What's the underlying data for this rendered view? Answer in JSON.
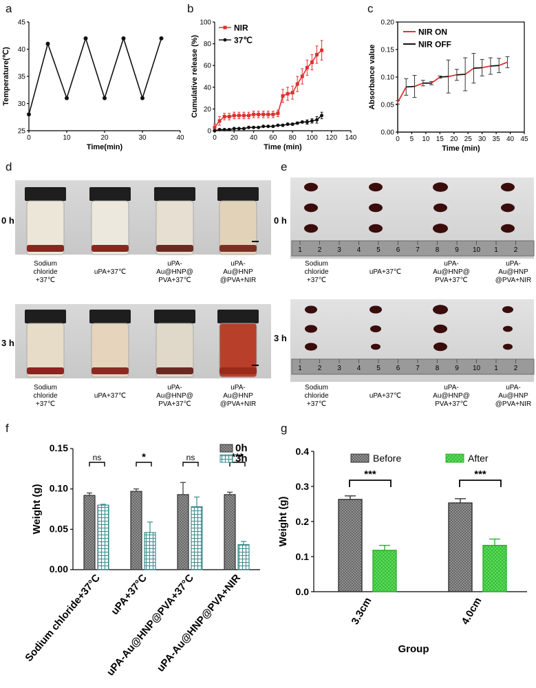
{
  "panel_labels": {
    "a": "a",
    "b": "b",
    "c": "c",
    "d": "d",
    "e": "e",
    "f": "f",
    "g": "g"
  },
  "colors": {
    "nir_red": "#e03030",
    "black": "#111111",
    "green": "#5fe05f",
    "teal": "#3a8c8c",
    "gray": "#8a8a8a"
  },
  "photo_d": {
    "rows": [
      "0 h",
      "3 h"
    ],
    "captions": [
      [
        "Sodium",
        "chloride",
        "+37℃"
      ],
      [
        "uPA+37℃"
      ],
      [
        "uPA-",
        "Au@HNP@",
        "PVA+37℃"
      ],
      [
        "uPA-",
        "Au@HNP",
        "@PVA+NIR"
      ]
    ]
  },
  "photo_e": {
    "rows": [
      "0 h",
      "3 h"
    ],
    "ruler_numbers": [
      "1",
      "2",
      "3",
      "4",
      "5",
      "6",
      "7",
      "8",
      "9",
      "10",
      "1",
      "2"
    ]
  },
  "chart_data": [
    {
      "id": "a",
      "type": "line",
      "title": "",
      "xlabel": "Time(min)",
      "ylabel": "Temperature(℃)",
      "xlim": [
        0,
        40
      ],
      "ylim": [
        25,
        45
      ],
      "xticks": [
        0,
        10,
        20,
        30,
        40
      ],
      "yticks": [
        25,
        30,
        35,
        40,
        45
      ],
      "x": [
        0,
        5,
        10,
        15,
        20,
        25,
        30,
        35
      ],
      "y": [
        28,
        41,
        31,
        42,
        31,
        42,
        31,
        42
      ]
    },
    {
      "id": "b",
      "type": "line",
      "xlabel": "Time (min)",
      "ylabel": "Cumulative release (%)",
      "xlim": [
        0,
        140
      ],
      "ylim": [
        0,
        100
      ],
      "xticks": [
        0,
        20,
        40,
        60,
        80,
        100,
        120,
        140
      ],
      "yticks": [
        0,
        20,
        40,
        60,
        80,
        100
      ],
      "legend_position": "top-left",
      "series": [
        {
          "name": "NIR",
          "color": "#e03030",
          "x": [
            0,
            5,
            10,
            15,
            20,
            25,
            30,
            35,
            40,
            45,
            50,
            55,
            60,
            65,
            70,
            75,
            80,
            85,
            90,
            95,
            100,
            105,
            110
          ],
          "y": [
            3,
            9,
            13,
            13,
            14,
            14,
            14,
            14,
            15,
            15,
            15,
            15,
            15,
            16,
            32,
            34,
            35,
            43,
            50,
            58,
            63,
            70,
            74
          ],
          "err": [
            3,
            4,
            3,
            3,
            3,
            3,
            3,
            3,
            3,
            3,
            3,
            3,
            3,
            3,
            6,
            6,
            6,
            7,
            7,
            7,
            7,
            8,
            9
          ]
        },
        {
          "name": "37℃",
          "color": "#111111",
          "x": [
            0,
            5,
            10,
            15,
            20,
            25,
            30,
            35,
            40,
            45,
            50,
            55,
            60,
            65,
            70,
            75,
            80,
            85,
            90,
            95,
            100,
            105,
            110
          ],
          "y": [
            0,
            1,
            1,
            1,
            2,
            2,
            2,
            3,
            3,
            3,
            4,
            4,
            4,
            5,
            5,
            6,
            6,
            7,
            8,
            8,
            9,
            10,
            14
          ],
          "err": [
            0.5,
            0.5,
            0.5,
            0.5,
            0.5,
            0.5,
            0.5,
            0.5,
            0.5,
            0.5,
            0.5,
            0.5,
            0.5,
            0.5,
            1,
            1,
            1,
            1,
            1,
            2,
            2,
            3,
            3
          ]
        }
      ]
    },
    {
      "id": "c",
      "type": "line",
      "xlabel": "Time (min)",
      "ylabel": "Absorbance value",
      "xlim": [
        0,
        45
      ],
      "ylim": [
        0.0,
        0.2
      ],
      "xticks": [
        0,
        5,
        10,
        15,
        20,
        25,
        30,
        35,
        40,
        45
      ],
      "yticks": [
        "0.00",
        "0.05",
        "0.10",
        "0.15",
        "0.20"
      ],
      "legend_position": "top-left",
      "legend": [
        {
          "name": "NIR ON",
          "color": "#e03030"
        },
        {
          "name": "NIR OFF",
          "color": "#111111"
        }
      ],
      "segments": [
        {
          "state": "ON",
          "x": [
            0,
            3
          ],
          "y": [
            0.054,
            0.082
          ]
        },
        {
          "state": "OFF",
          "x": [
            3,
            6
          ],
          "y": [
            0.082,
            0.083
          ]
        },
        {
          "state": "ON",
          "x": [
            6,
            9
          ],
          "y": [
            0.083,
            0.089
          ]
        },
        {
          "state": "OFF",
          "x": [
            9,
            12
          ],
          "y": [
            0.089,
            0.089
          ]
        },
        {
          "state": "ON",
          "x": [
            12,
            15
          ],
          "y": [
            0.089,
            0.1
          ]
        },
        {
          "state": "OFF",
          "x": [
            15,
            18
          ],
          "y": [
            0.1,
            0.101
          ]
        },
        {
          "state": "ON",
          "x": [
            18,
            21
          ],
          "y": [
            0.101,
            0.104
          ]
        },
        {
          "state": "OFF",
          "x": [
            21,
            24
          ],
          "y": [
            0.104,
            0.105
          ]
        },
        {
          "state": "ON",
          "x": [
            24,
            27
          ],
          "y": [
            0.105,
            0.116
          ]
        },
        {
          "state": "OFF",
          "x": [
            27,
            30
          ],
          "y": [
            0.116,
            0.117
          ]
        },
        {
          "state": "ON",
          "x": [
            30,
            33
          ],
          "y": [
            0.117,
            0.12
          ]
        },
        {
          "state": "OFF",
          "x": [
            33,
            36
          ],
          "y": [
            0.12,
            0.121
          ]
        },
        {
          "state": "ON",
          "x": [
            36,
            39
          ],
          "y": [
            0.121,
            0.127
          ]
        }
      ],
      "points": {
        "x": [
          0,
          3,
          6,
          9,
          12,
          15,
          18,
          21,
          24,
          27,
          30,
          33,
          36,
          39
        ],
        "y": [
          0.054,
          0.082,
          0.083,
          0.089,
          0.089,
          0.1,
          0.101,
          0.104,
          0.105,
          0.116,
          0.117,
          0.12,
          0.121,
          0.127
        ],
        "err": [
          0.003,
          0.015,
          0.02,
          0.005,
          0.003,
          0.002,
          0.03,
          0.01,
          0.03,
          0.027,
          0.015,
          0.015,
          0.013,
          0.01
        ]
      }
    },
    {
      "id": "f",
      "type": "bar",
      "xlabel": "",
      "ylabel": "Weight (g)",
      "ylim": [
        0,
        0.15
      ],
      "yticks": [
        "0.00",
        "0.05",
        "0.10",
        "0.15"
      ],
      "categories": [
        "Sodium chloride+37°C",
        "uPA+37°C",
        "uPA-Au@HNP@PVA+37°C",
        "uPA-Au@HNP@PVA+NIR"
      ],
      "legend_position": "top-right",
      "series": [
        {
          "name": "0h",
          "values": [
            0.092,
            0.097,
            0.093,
            0.093
          ],
          "err": [
            0.003,
            0.003,
            0.015,
            0.003
          ]
        },
        {
          "name": "3h",
          "values": [
            0.08,
            0.046,
            0.078,
            0.031
          ],
          "err": [
            0.001,
            0.013,
            0.012,
            0.004
          ]
        }
      ],
      "significance": [
        "ns",
        "*",
        "ns",
        "***"
      ]
    },
    {
      "id": "g",
      "type": "bar",
      "xlabel": "Group",
      "ylabel": "Weight (g)",
      "ylim": [
        0,
        0.4
      ],
      "yticks": [
        "0.0",
        "0.1",
        "0.2",
        "0.3",
        "0.4"
      ],
      "categories": [
        "3.3cm",
        "4.0cm"
      ],
      "legend_position": "top",
      "series": [
        {
          "name": "Before",
          "values": [
            0.263,
            0.253
          ],
          "err": [
            0.01,
            0.012
          ]
        },
        {
          "name": "After",
          "values": [
            0.118,
            0.132
          ],
          "err": [
            0.014,
            0.018
          ]
        }
      ],
      "significance": [
        "***",
        "***"
      ]
    }
  ]
}
